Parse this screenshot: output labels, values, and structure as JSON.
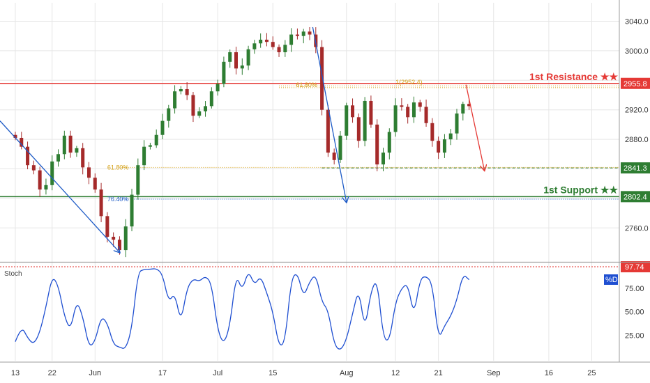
{
  "colors": {
    "up": "#2e7d32",
    "down": "#a52a2a",
    "resistance": "#e53935",
    "support": "#2e7d32",
    "fib": "#d4a017",
    "blue": "#1e5bc6",
    "stoch": "#1f4fd1",
    "stoch_level": "#e53935",
    "grid": "#e6e6e6",
    "text": "#333333"
  },
  "chart_data": {
    "type": "candlestick",
    "y_axis": {
      "ticks": [
        "3040.0",
        "3000.0",
        "2960.0",
        "2920.0",
        "2880.0",
        "2840.0",
        "2800.0",
        "2760.0"
      ],
      "tick_values": [
        3040,
        3000,
        2960,
        2920,
        2880,
        2840,
        2800,
        2760
      ],
      "range": [
        2715,
        3065
      ]
    },
    "x_axis": {
      "ticks": [
        "13",
        "22",
        "Jun",
        "17",
        "Jul",
        "15",
        "Aug",
        "12",
        "21",
        "Sep",
        "16",
        "25"
      ],
      "tick_index": [
        0,
        6,
        13,
        24,
        33,
        42,
        54,
        62,
        69,
        78,
        87,
        94
      ],
      "bar_count_shown": 75,
      "index_range": [
        -2.5,
        98.5
      ]
    },
    "closes": [
      2882,
      2870,
      2845,
      2838,
      2812,
      2818,
      2850,
      2860,
      2885,
      2862,
      2868,
      2842,
      2828,
      2812,
      2776,
      2748,
      2744,
      2730,
      2762,
      2805,
      2845,
      2870,
      2872,
      2886,
      2905,
      2922,
      2945,
      2948,
      2940,
      2912,
      2918,
      2925,
      2945,
      2955,
      2985,
      2998,
      2976,
      2980,
      3002,
      3010,
      3015,
      3012,
      3005,
      2998,
      3008,
      3022,
      3020,
      3026,
      3022,
      3005,
      2920,
      2862,
      2852,
      2885,
      2926,
      2910,
      2878,
      2932,
      2900,
      2846,
      2862,
      2890,
      2926,
      2924,
      2910,
      2930,
      2924,
      2902,
      2878,
      2862,
      2880,
      2888,
      2915,
      2928,
      2925
    ],
    "levels": {
      "resistance": {
        "label": "1st Resistance ★★",
        "value_label": "2955.8",
        "value": 2955.8
      },
      "mid": {
        "value_label": "2841.3",
        "value": 2841.3
      },
      "support": {
        "label": "1st Support ★★",
        "value_label": "2802.4",
        "value": 2802.4
      }
    },
    "annotations": {
      "fib_upper": "61.80%",
      "fib_upper_ext": "1(2952.4)",
      "fib_lower": "61.80%",
      "fib_blue": "76.40%"
    },
    "stochastic": {
      "title": "Stoch",
      "ticks": [
        "75.00",
        "50.00",
        "25.00"
      ],
      "tick_values": [
        75,
        50,
        25
      ],
      "level_label": "97.74",
      "level_value": 97.74,
      "series_label": "%D",
      "values": [
        18,
        35,
        22,
        15,
        28,
        55,
        88,
        78,
        45,
        30,
        62,
        45,
        12,
        18,
        45,
        38,
        15,
        12,
        10,
        32,
        92,
        95,
        95,
        96,
        90,
        60,
        70,
        38,
        75,
        85,
        82,
        88,
        80,
        30,
        15,
        35,
        90,
        72,
        94,
        78,
        88,
        70,
        50,
        12,
        18,
        85,
        92,
        65,
        82,
        90,
        60,
        52,
        15,
        8,
        20,
        48,
        75,
        30,
        72,
        85,
        22,
        18,
        60,
        75,
        80,
        45,
        85,
        88,
        80,
        20,
        35,
        45,
        62,
        90,
        84
      ]
    }
  }
}
